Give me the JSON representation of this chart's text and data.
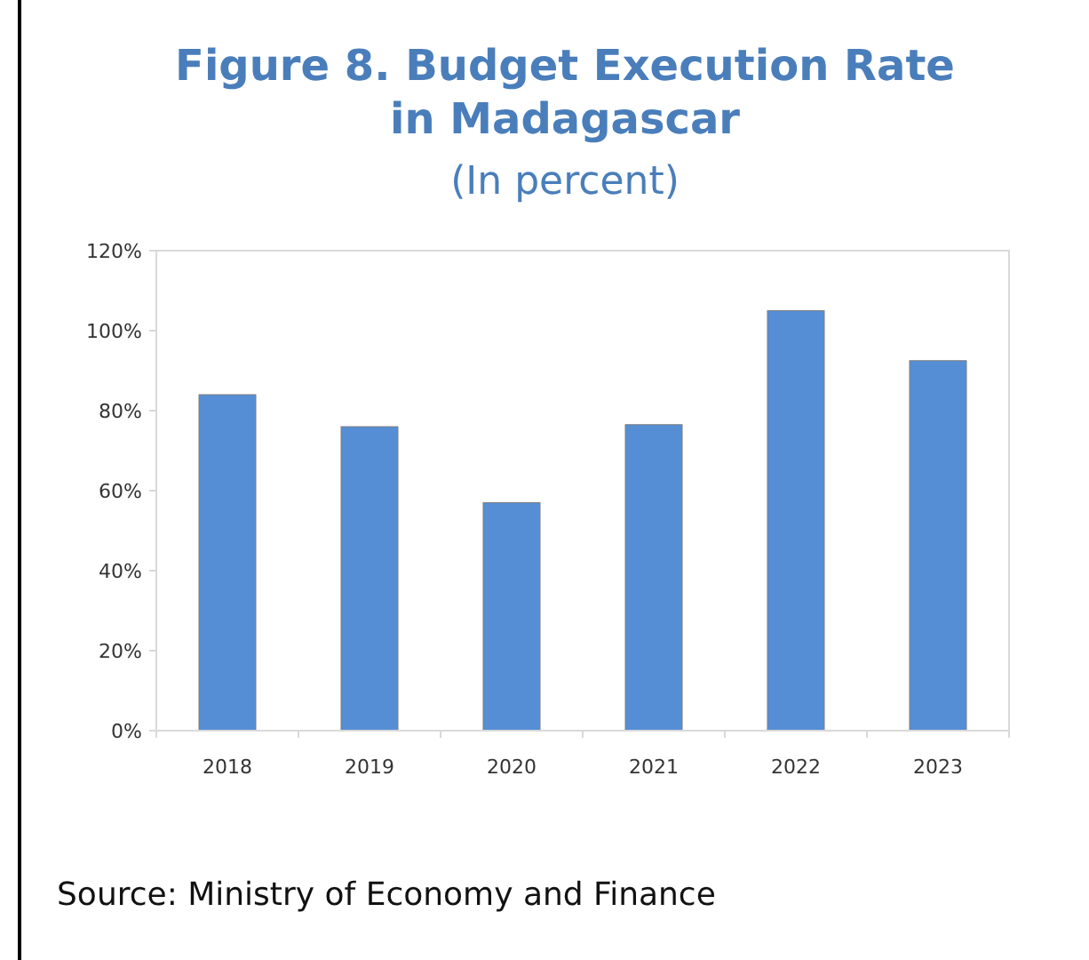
{
  "chart_data": {
    "type": "bar",
    "title": "Figure 8. Budget Execution Rate in Madagascar",
    "subtitle": "(In percent)",
    "categories": [
      "2018",
      "2019",
      "2020",
      "2021",
      "2022",
      "2023"
    ],
    "values": [
      84,
      76,
      57,
      76.5,
      105,
      92.5
    ],
    "color": "#558ed5",
    "ylim": [
      0,
      120
    ],
    "yticks": [
      {
        "value": 0,
        "label": "0%"
      },
      {
        "value": 20,
        "label": "20%"
      },
      {
        "value": 40,
        "label": "40%"
      },
      {
        "value": 60,
        "label": "60%"
      },
      {
        "value": 80,
        "label": "80%"
      },
      {
        "value": 100,
        "label": "100%"
      },
      {
        "value": 120,
        "label": "120%"
      }
    ],
    "grid": false,
    "annotations": [
      "Source: Ministry of Economy and Finance"
    ]
  }
}
